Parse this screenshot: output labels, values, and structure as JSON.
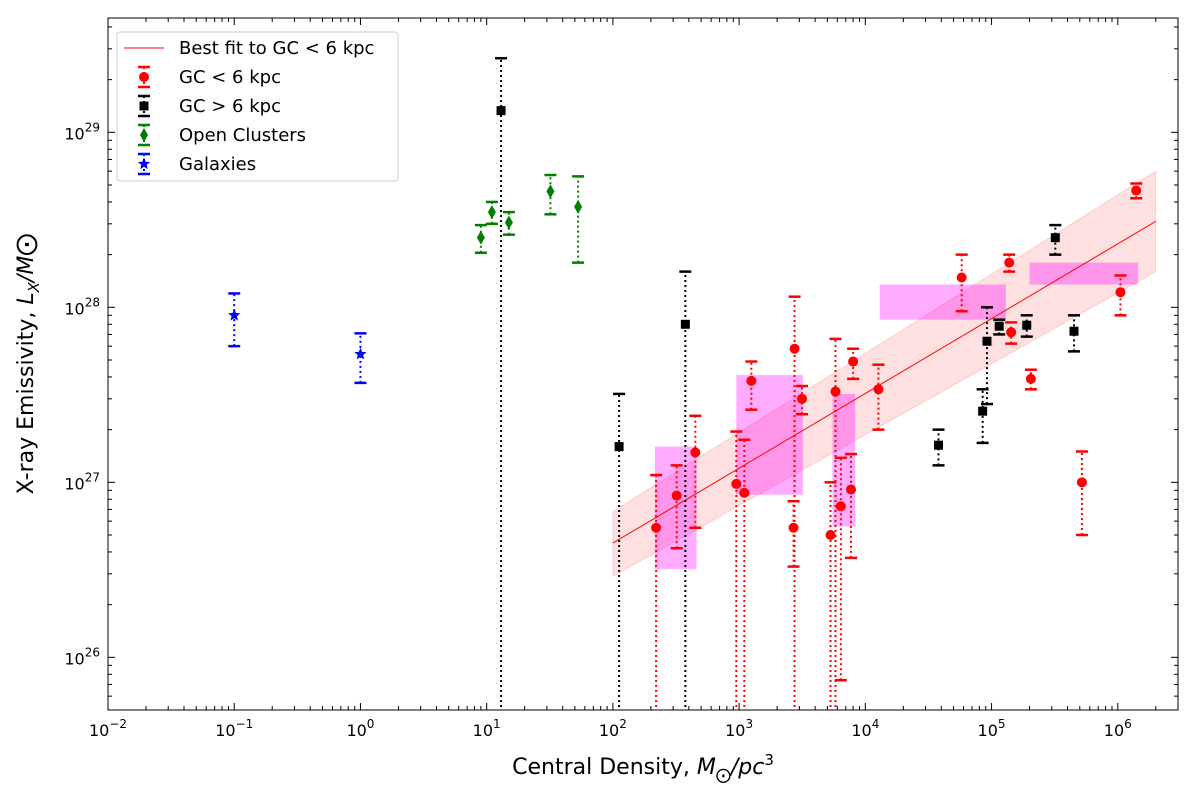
{
  "chart_data": {
    "type": "scatter",
    "xscale": "log",
    "yscale": "log",
    "xlim": [
      0.01,
      3000000
    ],
    "ylim": [
      5e+25,
      4.5e+29
    ],
    "xlabel": "Central Density, M⊙/pc³",
    "ylabel": "X-ray Emissivity, L_X/M⊙",
    "x_major_ticks": [
      {
        "value": 0.01,
        "label": "10",
        "exp": "−2"
      },
      {
        "value": 0.1,
        "label": "10",
        "exp": "−1"
      },
      {
        "value": 1,
        "label": "10",
        "exp": "0"
      },
      {
        "value": 10,
        "label": "10",
        "exp": "1"
      },
      {
        "value": 100,
        "label": "10",
        "exp": "2"
      },
      {
        "value": 1000,
        "label": "10",
        "exp": "3"
      },
      {
        "value": 10000,
        "label": "10",
        "exp": "4"
      },
      {
        "value": 100000,
        "label": "10",
        "exp": "5"
      },
      {
        "value": 1000000,
        "label": "10",
        "exp": "6"
      }
    ],
    "y_major_ticks": [
      {
        "value": 1e+26,
        "label": "10",
        "exp": "26"
      },
      {
        "value": 1e+27,
        "label": "10",
        "exp": "27"
      },
      {
        "value": 1e+28,
        "label": "10",
        "exp": "28"
      },
      {
        "value": 1e+29,
        "label": "10",
        "exp": "29"
      }
    ],
    "legend": {
      "placement": "top-left",
      "entries": [
        {
          "label": "Best fit to GC < 6 kpc",
          "kind": "line",
          "color": "#ff0000"
        },
        {
          "label": "GC < 6 kpc",
          "kind": "circle",
          "color": "#ff0000"
        },
        {
          "label": "GC > 6 kpc",
          "kind": "square",
          "color": "#000000"
        },
        {
          "label": "Open Clusters",
          "kind": "diamond",
          "color": "#008000"
        },
        {
          "label": "Galaxies",
          "kind": "star",
          "color": "#0000ff"
        }
      ]
    },
    "fit": {
      "x": [
        100,
        2000000
      ],
      "y": [
        4.5e+26,
        3.1e+28
      ],
      "band_low": [
        2.9e+26,
        1.6e+28
      ],
      "band_high": [
        6.8e+26,
        6e+28
      ],
      "color": "#ff0000"
    },
    "boxes": [
      {
        "x": [
          215,
          460
        ],
        "y": [
          3.2e+26,
          1.6e+27
        ]
      },
      {
        "x": [
          950,
          3200
        ],
        "y": [
          8.5e+26,
          4.1e+27
        ]
      },
      {
        "x": [
          5500,
          8300
        ],
        "y": [
          5.6e+26,
          3.2e+27
        ]
      },
      {
        "x": [
          13000,
          130000
        ],
        "y": [
          8.5e+27,
          1.35e+28
        ]
      },
      {
        "x": [
          200000,
          1450000
        ],
        "y": [
          1.35e+28,
          1.8e+28
        ]
      }
    ],
    "series": [
      {
        "name": "GC < 6 kpc",
        "marker": "circle",
        "color": "#ff0000",
        "points": [
          {
            "x": 220,
            "y": 5.5e+26,
            "lo": 4e+25,
            "hi": 1.1e+27
          },
          {
            "x": 320,
            "y": 8.4e+26,
            "lo": 4.2e+26,
            "hi": 1.25e+27
          },
          {
            "x": 450,
            "y": 1.48e+27,
            "lo": 5.5e+26,
            "hi": 2.4e+27
          },
          {
            "x": 950,
            "y": 9.8e+26,
            "lo": 4e+25,
            "hi": 1.95e+27
          },
          {
            "x": 1100,
            "y": 8.7e+26,
            "lo": 4e+25,
            "hi": 1.75e+27
          },
          {
            "x": 1250,
            "y": 3.8e+27,
            "lo": 2.6e+27,
            "hi": 4.9e+27
          },
          {
            "x": 2700,
            "y": 5.5e+26,
            "lo": 3.3e+26,
            "hi": 7.8e+26
          },
          {
            "x": 2750,
            "y": 5.8e+27,
            "lo": 4e+25,
            "hi": 1.15e+28
          },
          {
            "x": 3150,
            "y": 3e+27,
            "lo": 2.45e+27,
            "hi": 3.55e+27
          },
          {
            "x": 5300,
            "y": 5e+26,
            "lo": 4e+25,
            "hi": 1e+27
          },
          {
            "x": 5800,
            "y": 3.3e+27,
            "lo": 4e+25,
            "hi": 6.6e+27
          },
          {
            "x": 6400,
            "y": 7.3e+26,
            "lo": 7.4e+25,
            "hi": 1.38e+27
          },
          {
            "x": 7700,
            "y": 9.1e+26,
            "lo": 3.7e+26,
            "hi": 1.45e+27
          },
          {
            "x": 8000,
            "y": 4.9e+27,
            "lo": 3.9e+27,
            "hi": 5.8e+27
          },
          {
            "x": 12700,
            "y": 3.4e+27,
            "lo": 2e+27,
            "hi": 4.7e+27
          },
          {
            "x": 58000,
            "y": 1.48e+28,
            "lo": 9.5e+27,
            "hi": 2e+28
          },
          {
            "x": 138000,
            "y": 1.8e+28,
            "lo": 1.6e+28,
            "hi": 2e+28
          },
          {
            "x": 143000,
            "y": 7.2e+27,
            "lo": 6.2e+27,
            "hi": 8.2e+27
          },
          {
            "x": 205000,
            "y": 3.9e+27,
            "lo": 3.4e+27,
            "hi": 4.4e+27
          },
          {
            "x": 520000,
            "y": 1e+27,
            "lo": 5e+26,
            "hi": 1.5e+27
          },
          {
            "x": 1050000,
            "y": 1.22e+28,
            "lo": 9e+27,
            "hi": 1.52e+28
          },
          {
            "x": 1400000,
            "y": 4.65e+28,
            "lo": 4.2e+28,
            "hi": 5.1e+28
          }
        ]
      },
      {
        "name": "GC > 6 kpc",
        "marker": "square",
        "color": "#000000",
        "points": [
          {
            "x": 13,
            "y": 1.33e+29,
            "lo": 4e+25,
            "hi": 2.65e+29
          },
          {
            "x": 112,
            "y": 1.6e+27,
            "lo": 4e+25,
            "hi": 3.2e+27
          },
          {
            "x": 375,
            "y": 8e+27,
            "lo": 4e+25,
            "hi": 1.6e+28
          },
          {
            "x": 38000,
            "y": 1.63e+27,
            "lo": 1.25e+27,
            "hi": 2e+27
          },
          {
            "x": 85000,
            "y": 2.55e+27,
            "lo": 1.68e+27,
            "hi": 3.4e+27
          },
          {
            "x": 92000,
            "y": 6.4e+27,
            "lo": 2.8e+27,
            "hi": 1e+28
          },
          {
            "x": 115000,
            "y": 7.8e+27,
            "lo": 7e+27,
            "hi": 8.5e+27
          },
          {
            "x": 190000,
            "y": 7.9e+27,
            "lo": 6.8e+27,
            "hi": 9e+27
          },
          {
            "x": 320000,
            "y": 2.5e+28,
            "lo": 2e+28,
            "hi": 2.95e+28
          },
          {
            "x": 450000,
            "y": 7.3e+27,
            "lo": 5.6e+27,
            "hi": 9e+27
          }
        ]
      },
      {
        "name": "Open Clusters",
        "marker": "diamond",
        "color": "#008000",
        "points": [
          {
            "x": 9,
            "y": 2.5e+28,
            "lo": 2.05e+28,
            "hi": 2.95e+28
          },
          {
            "x": 11,
            "y": 3.5e+28,
            "lo": 3e+28,
            "hi": 4e+28
          },
          {
            "x": 15,
            "y": 3.05e+28,
            "lo": 2.6e+28,
            "hi": 3.5e+28
          },
          {
            "x": 32,
            "y": 4.6e+28,
            "lo": 3.4e+28,
            "hi": 5.7e+28
          },
          {
            "x": 53,
            "y": 3.75e+28,
            "lo": 1.8e+28,
            "hi": 5.6e+28
          }
        ]
      },
      {
        "name": "Galaxies",
        "marker": "star",
        "color": "#0000ff",
        "points": [
          {
            "x": 0.1,
            "y": 9e+27,
            "lo": 6e+27,
            "hi": 1.2e+28
          },
          {
            "x": 1.0,
            "y": 5.4e+27,
            "lo": 3.7e+27,
            "hi": 7.1e+27
          }
        ]
      }
    ]
  }
}
